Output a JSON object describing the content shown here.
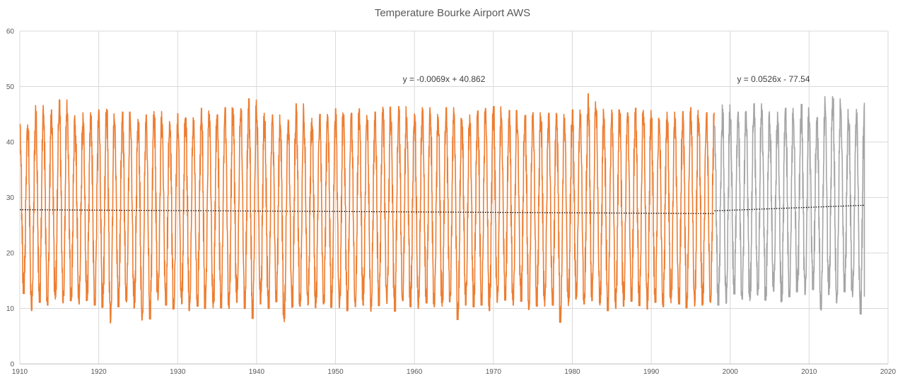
{
  "chart_data": {
    "type": "line",
    "title": "Temperature Bourke Airport AWS",
    "xlabel": "",
    "ylabel": "",
    "xlim": [
      1910,
      2020
    ],
    "ylim": [
      0,
      60
    ],
    "x_ticks": [
      "1910",
      "1920",
      "1930",
      "1940",
      "1950",
      "1960",
      "1970",
      "1980",
      "1990",
      "2000",
      "2010",
      "2020"
    ],
    "y_ticks": [
      "0",
      "10",
      "20",
      "30",
      "40",
      "50",
      "60"
    ],
    "grid": true,
    "legend": "none",
    "series": [
      {
        "color": "#ed7d31",
        "x_range": [
          1910,
          1998
        ],
        "annual_max": [
          43.2,
          43.1,
          46.6,
          44.9,
          45.8,
          47.6,
          45.1,
          43.0,
          45.3,
          44.7,
          45.8,
          45.9,
          43.6,
          45.4,
          44.1,
          43.5,
          44.9,
          45.5,
          43.7,
          43.2,
          45.1,
          44.4,
          43.9,
          46.1,
          45.0,
          44.9,
          46.2,
          46.0,
          46.0,
          47.8,
          45.2,
          43.7,
          44.9,
          43.1,
          44.0,
          46.9,
          43.5,
          44.3,
          45.0,
          44.6,
          46.0,
          44.9,
          45.2,
          46.0,
          43.9,
          45.4,
          46.3,
          44.6,
          46.4,
          44.4,
          45.1,
          46.2,
          45.0,
          44.5,
          46.2,
          45.1,
          43.9,
          44.9,
          45.6,
          46.1,
          46.4,
          44.2,
          45.7,
          44.0,
          44.8,
          45.3,
          44.6,
          45.2,
          45.0,
          44.3,
          45.8,
          45.0,
          48.7,
          46.0,
          44.1,
          45.8,
          45.3,
          45.3,
          46.1,
          45.7,
          44.3,
          44.0,
          45.4,
          44.2,
          45.5,
          46.2,
          44.3,
          45.3
        ],
        "annual_min": [
          12.7,
          9.6,
          11.1,
          10.6,
          11.7,
          11.0,
          11.4,
          10.8,
          11.4,
          10.6,
          10.2,
          7.4,
          10.3,
          11.2,
          10.1,
          7.9,
          8.1,
          11.5,
          10.6,
          9.9,
          10.8,
          9.6,
          10.4,
          10.0,
          10.1,
          10.1,
          10.0,
          11.1,
          10.0,
          8.2,
          10.8,
          10.0,
          11.2,
          7.6,
          10.2,
          10.4,
          10.6,
          10.1,
          10.8,
          10.2,
          10.1,
          9.6,
          10.3,
          10.6,
          9.5,
          10.5,
          10.9,
          9.5,
          11.4,
          10.3,
          10.0,
          11.0,
          10.3,
          10.4,
          11.2,
          8.0,
          10.6,
          10.3,
          10.6,
          9.6,
          11.1,
          11.5,
          10.6,
          11.3,
          9.8,
          10.4,
          10.4,
          10.6,
          7.5,
          10.5,
          11.7,
          10.8,
          11.4,
          10.6,
          9.6,
          10.0,
          10.4,
          11.3,
          10.5,
          9.9,
          11.1,
          10.3,
          11.0,
          10.8,
          10.1,
          10.4,
          10.6,
          11.1
        ]
      },
      {
        "color": "#a5a5a5",
        "x_range": [
          1998,
          2017
        ],
        "annual_max": [
          42.9,
          46.7,
          44.8,
          45.4,
          45.5,
          46.9,
          45.8,
          43.1,
          45.4,
          46.1,
          44.2,
          46.8,
          43.8,
          44.4,
          48.2,
          47.8,
          45.9,
          44.0,
          45.9,
          47.0
        ],
        "annual_min": [
          10.6,
          10.9,
          12.6,
          11.7,
          11.4,
          12.4,
          11.5,
          13.1,
          11.2,
          12.1,
          13.0,
          12.5,
          13.4,
          9.7,
          12.5,
          11.0,
          13.0,
          12.1,
          9.0,
          12.2
        ]
      }
    ],
    "annotations": [
      "y = -0.0069x + 40.862",
      "y = 0.0526x - 77.54"
    ],
    "trendlines": [
      {
        "x": [
          1910,
          1998
        ],
        "y": [
          27.8,
          27.1
        ]
      },
      {
        "x": [
          1998,
          2017
        ],
        "y": [
          27.6,
          28.6
        ]
      }
    ]
  }
}
